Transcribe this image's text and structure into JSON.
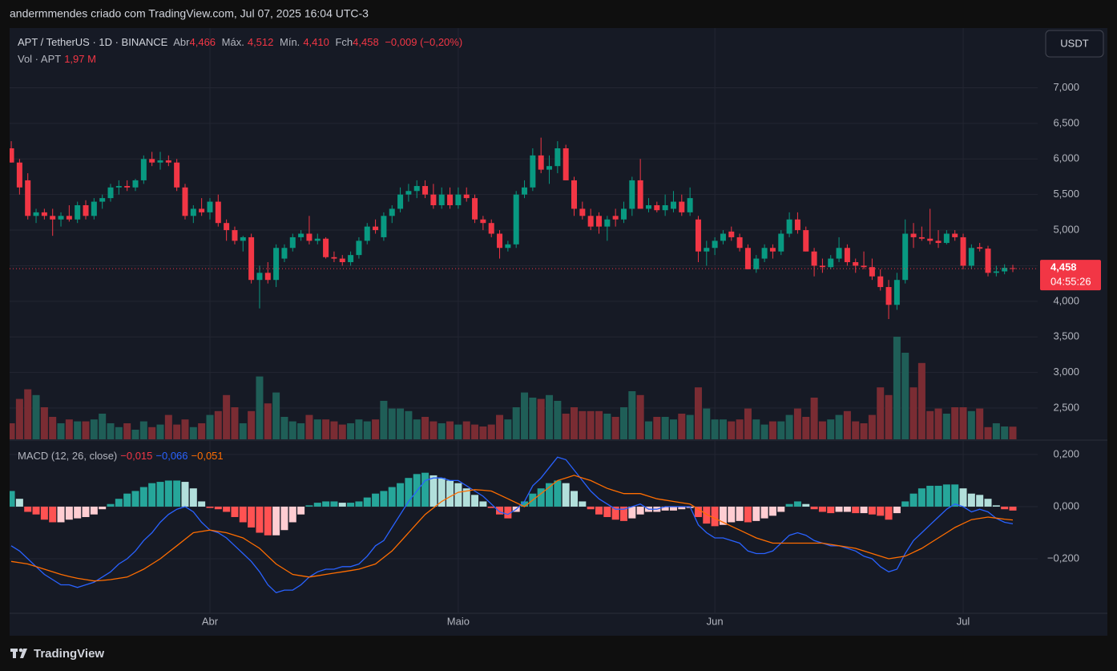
{
  "header": {
    "attribution": "andermmendes criado com TradingView.com, Jul 07, 2025 16:04 UTC-3",
    "symbol": "APT / TetherUS · 1D · BINANCE",
    "open_label": "Abr",
    "open": "4,466",
    "high_label": "Máx.",
    "high": "4,512",
    "low_label": "Mín.",
    "low": "4,410",
    "close_label": "Fch",
    "close": "4,458",
    "change": "−0,009 (−0,20%)",
    "volume_label": "Vol · APT",
    "volume": "1,97 M",
    "currency": "USDT",
    "price_tag": "4,458",
    "countdown": "04:55:26",
    "macd_label": "MACD (12, 26, close)",
    "macd_hist": "−0,015",
    "macd": "−0,066",
    "macd_signal": "−0,051",
    "logo": "TradingView"
  },
  "chart_data": {
    "type": "candlestick",
    "grid": true,
    "up_color": "#089981",
    "down_color": "#f23645",
    "volume_up_color": "#1f5e57",
    "volume_down_color": "#7a2c33",
    "xlim": [
      -1.36,
      124
    ],
    "xticks": [
      {
        "value": 24,
        "label": "Abr"
      },
      {
        "value": 54,
        "label": "Maio"
      },
      {
        "value": 85,
        "label": "Jun"
      },
      {
        "value": 115,
        "label": "Jul"
      }
    ],
    "ylim": [
      2.06,
      7.84
    ],
    "yticks": [
      {
        "value": 7,
        "label": "7,000"
      },
      {
        "value": 6.5,
        "label": "6,500"
      },
      {
        "value": 6,
        "label": "6,000"
      },
      {
        "value": 5.5,
        "label": "5,500"
      },
      {
        "value": 5,
        "label": "5,000"
      },
      {
        "value": 4.5,
        "label": "4,500"
      },
      {
        "value": 4,
        "label": "4,000"
      },
      {
        "value": 3.5,
        "label": "3,500"
      },
      {
        "value": 3,
        "label": "3,000"
      },
      {
        "value": 2.5,
        "label": "2,500"
      }
    ],
    "ohlc": [
      [
        6.15,
        6.25,
        5.95,
        5.95
      ],
      [
        5.95,
        6.0,
        5.5,
        5.6
      ],
      [
        5.7,
        5.8,
        5.15,
        5.2
      ],
      [
        5.2,
        5.3,
        5.1,
        5.25
      ],
      [
        5.25,
        5.3,
        5.15,
        5.2
      ],
      [
        5.2,
        5.3,
        4.92,
        5.15
      ],
      [
        5.15,
        5.25,
        5.05,
        5.2
      ],
      [
        5.2,
        5.35,
        5.12,
        5.15
      ],
      [
        5.15,
        5.4,
        5.1,
        5.35
      ],
      [
        5.35,
        5.42,
        5.15,
        5.2
      ],
      [
        5.2,
        5.45,
        5.15,
        5.4
      ],
      [
        5.4,
        5.5,
        5.3,
        5.45
      ],
      [
        5.45,
        5.65,
        5.4,
        5.6
      ],
      [
        5.6,
        5.7,
        5.5,
        5.62
      ],
      [
        5.62,
        5.7,
        5.55,
        5.6
      ],
      [
        5.6,
        5.72,
        5.55,
        5.7
      ],
      [
        5.7,
        6.05,
        5.65,
        6.0
      ],
      [
        6.0,
        6.1,
        5.9,
        5.95
      ],
      [
        5.95,
        6.1,
        5.85,
        5.98
      ],
      [
        5.98,
        6.05,
        5.9,
        5.95
      ],
      [
        5.95,
        6.0,
        5.55,
        5.6
      ],
      [
        5.6,
        5.65,
        5.15,
        5.2
      ],
      [
        5.2,
        5.35,
        5.1,
        5.3
      ],
      [
        5.3,
        5.45,
        5.2,
        5.25
      ],
      [
        5.25,
        5.45,
        5.15,
        5.4
      ],
      [
        5.4,
        5.5,
        5.05,
        5.1
      ],
      [
        5.1,
        5.15,
        4.85,
        5.0
      ],
      [
        5.0,
        5.05,
        4.8,
        4.85
      ],
      [
        4.85,
        4.92,
        4.7,
        4.9
      ],
      [
        4.9,
        4.95,
        4.25,
        4.3
      ],
      [
        4.3,
        4.5,
        3.9,
        4.4
      ],
      [
        4.4,
        4.55,
        4.25,
        4.3
      ],
      [
        4.3,
        4.8,
        4.2,
        4.75
      ],
      [
        4.6,
        4.8,
        4.55,
        4.75
      ],
      [
        4.75,
        4.95,
        4.7,
        4.9
      ],
      [
        4.9,
        5.0,
        4.85,
        4.95
      ],
      [
        4.95,
        5.2,
        4.8,
        4.85
      ],
      [
        4.85,
        4.95,
        4.8,
        4.88
      ],
      [
        4.88,
        4.9,
        4.6,
        4.62
      ],
      [
        4.62,
        4.7,
        4.55,
        4.6
      ],
      [
        4.6,
        4.65,
        4.5,
        4.55
      ],
      [
        4.55,
        4.7,
        4.5,
        4.65
      ],
      [
        4.65,
        4.9,
        4.6,
        4.85
      ],
      [
        4.85,
        5.1,
        4.8,
        5.05
      ],
      [
        5.05,
        5.15,
        4.95,
        5.0
      ],
      [
        4.9,
        5.25,
        4.85,
        5.2
      ],
      [
        5.2,
        5.35,
        5.1,
        5.3
      ],
      [
        5.3,
        5.6,
        5.25,
        5.5
      ],
      [
        5.5,
        5.65,
        5.4,
        5.55
      ],
      [
        5.55,
        5.7,
        5.45,
        5.62
      ],
      [
        5.62,
        5.7,
        5.45,
        5.5
      ],
      [
        5.5,
        5.65,
        5.3,
        5.35
      ],
      [
        5.35,
        5.6,
        5.3,
        5.5
      ],
      [
        5.5,
        5.6,
        5.3,
        5.35
      ],
      [
        5.35,
        5.6,
        5.3,
        5.5
      ],
      [
        5.5,
        5.6,
        5.4,
        5.45
      ],
      [
        5.45,
        5.5,
        5.1,
        5.15
      ],
      [
        5.15,
        5.2,
        5.0,
        5.1
      ],
      [
        5.1,
        5.15,
        4.9,
        4.95
      ],
      [
        4.95,
        5.0,
        4.6,
        4.75
      ],
      [
        4.75,
        4.85,
        4.7,
        4.8
      ],
      [
        4.8,
        5.55,
        4.75,
        5.5
      ],
      [
        5.5,
        5.7,
        5.45,
        5.6
      ],
      [
        5.6,
        6.15,
        5.55,
        6.05
      ],
      [
        6.05,
        6.3,
        5.8,
        5.85
      ],
      [
        5.85,
        6.05,
        5.65,
        5.9
      ],
      [
        5.9,
        6.25,
        5.8,
        6.15
      ],
      [
        6.15,
        6.2,
        5.7,
        5.7
      ],
      [
        5.7,
        5.75,
        5.2,
        5.3
      ],
      [
        5.3,
        5.4,
        5.15,
        5.2
      ],
      [
        5.2,
        5.3,
        5.0,
        5.05
      ],
      [
        5.2,
        5.25,
        4.95,
        5.05
      ],
      [
        5.05,
        5.2,
        4.85,
        5.15
      ],
      [
        5.2,
        5.3,
        5.05,
        5.15
      ],
      [
        5.15,
        5.4,
        5.1,
        5.3
      ],
      [
        5.3,
        5.75,
        5.2,
        5.7
      ],
      [
        5.7,
        6.0,
        5.3,
        5.3
      ],
      [
        5.3,
        5.45,
        5.25,
        5.35
      ],
      [
        5.35,
        5.4,
        5.25,
        5.28
      ],
      [
        5.28,
        5.5,
        5.2,
        5.35
      ],
      [
        5.3,
        5.55,
        5.25,
        5.4
      ],
      [
        5.4,
        5.5,
        5.2,
        5.25
      ],
      [
        5.25,
        5.6,
        5.2,
        5.45
      ],
      [
        5.15,
        5.2,
        4.55,
        4.7
      ],
      [
        4.7,
        4.85,
        4.5,
        4.75
      ],
      [
        4.75,
        4.9,
        4.65,
        4.85
      ],
      [
        4.85,
        5.0,
        4.8,
        4.95
      ],
      [
        4.98,
        5.05,
        4.85,
        4.9
      ],
      [
        4.9,
        4.95,
        4.7,
        4.75
      ],
      [
        4.75,
        4.8,
        4.45,
        4.45
      ],
      [
        4.45,
        4.65,
        4.4,
        4.6
      ],
      [
        4.6,
        4.8,
        4.55,
        4.75
      ],
      [
        4.75,
        4.8,
        4.6,
        4.7
      ],
      [
        4.7,
        5.0,
        4.65,
        4.95
      ],
      [
        4.95,
        5.25,
        4.9,
        5.15
      ],
      [
        5.15,
        5.25,
        4.95,
        5.0
      ],
      [
        5.0,
        5.05,
        4.7,
        4.7
      ],
      [
        4.7,
        4.75,
        4.35,
        4.5
      ],
      [
        4.5,
        4.6,
        4.4,
        4.48
      ],
      [
        4.48,
        4.65,
        4.45,
        4.6
      ],
      [
        4.6,
        4.9,
        4.55,
        4.75
      ],
      [
        4.75,
        4.8,
        4.5,
        4.55
      ],
      [
        4.55,
        4.6,
        4.4,
        4.5
      ],
      [
        4.5,
        4.7,
        4.45,
        4.48
      ],
      [
        4.48,
        4.6,
        4.3,
        4.35
      ],
      [
        4.35,
        4.45,
        4.15,
        4.2
      ],
      [
        4.2,
        4.3,
        3.75,
        3.95
      ],
      [
        3.95,
        4.4,
        3.88,
        4.3
      ],
      [
        4.3,
        5.15,
        4.25,
        4.95
      ],
      [
        4.95,
        5.1,
        4.75,
        4.9
      ],
      [
        4.9,
        5.05,
        4.85,
        4.88
      ],
      [
        4.88,
        5.3,
        4.8,
        4.85
      ],
      [
        4.85,
        5.0,
        4.75,
        4.82
      ],
      [
        4.82,
        5.0,
        4.8,
        4.95
      ],
      [
        4.95,
        5.0,
        4.85,
        4.9
      ],
      [
        4.9,
        4.95,
        4.45,
        4.5
      ],
      [
        4.5,
        4.8,
        4.45,
        4.75
      ],
      [
        4.76,
        4.82,
        4.7,
        4.74
      ],
      [
        4.74,
        4.78,
        4.35,
        4.4
      ],
      [
        4.4,
        4.5,
        4.35,
        4.42
      ],
      [
        4.42,
        4.52,
        4.38,
        4.47
      ],
      [
        4.466,
        4.512,
        4.41,
        4.458
      ]
    ],
    "volume": [
      2.5,
      6.3,
      7.8,
      6.9,
      5.0,
      3.5,
      2.5,
      3.1,
      2.8,
      2.8,
      3.1,
      4.0,
      2.5,
      1.9,
      2.5,
      1.5,
      2.8,
      1.9,
      2.3,
      3.8,
      2.3,
      3.1,
      1.9,
      2.5,
      3.8,
      4.4,
      6.9,
      5.0,
      2.5,
      4.4,
      9.8,
      5.6,
      7.3,
      3.5,
      2.8,
      2.5,
      3.8,
      3.1,
      3.1,
      2.8,
      2.3,
      2.5,
      3.1,
      2.8,
      3.1,
      6.0,
      4.8,
      4.8,
      4.4,
      3.1,
      3.5,
      2.8,
      2.5,
      2.8,
      2.3,
      2.8,
      2.3,
      2.0,
      2.3,
      3.8,
      3.1,
      5.0,
      7.3,
      6.5,
      6.3,
      6.9,
      6.0,
      4.0,
      5.0,
      4.4,
      4.4,
      4.4,
      4.0,
      3.5,
      5.0,
      7.5,
      6.9,
      2.8,
      3.5,
      3.5,
      3.1,
      4.0,
      3.8,
      8.1,
      4.8,
      3.1,
      3.1,
      2.8,
      3.1,
      4.8,
      3.1,
      2.3,
      2.8,
      2.8,
      3.8,
      4.8,
      3.5,
      6.5,
      2.8,
      3.1,
      3.8,
      4.4,
      2.8,
      2.5,
      3.8,
      8.1,
      6.9,
      16.0,
      13.5,
      8.1,
      11.9,
      4.4,
      4.8,
      4.0,
      5.0,
      5.0,
      4.4,
      4.8,
      1.9,
      2.5,
      2.0,
      1.97
    ],
    "macd": {
      "ylim": [
        -0.409,
        0.252
      ],
      "yticks": [
        {
          "value": 0.2,
          "label": "0,200"
        },
        {
          "value": 0,
          "label": "0,000"
        },
        {
          "value": -0.2,
          "label": "−0,200"
        }
      ],
      "macd_color": "#2962ff",
      "signal_color": "#ff6d00",
      "hist_up_strong": "#26a69a",
      "hist_up_weak": "#b2dfdb",
      "hist_down_strong": "#ff5252",
      "hist_down_weak": "#ffcdd2",
      "histogram": [
        0.06,
        0.03,
        -0.02,
        -0.03,
        -0.05,
        -0.06,
        -0.06,
        -0.05,
        -0.045,
        -0.04,
        -0.03,
        -0.01,
        0.01,
        0.03,
        0.05,
        0.06,
        0.075,
        0.09,
        0.095,
        0.1,
        0.1,
        0.095,
        0.07,
        0.02,
        -0.005,
        -0.01,
        -0.02,
        -0.04,
        -0.06,
        -0.08,
        -0.1,
        -0.11,
        -0.11,
        -0.09,
        -0.06,
        -0.03,
        0.005,
        0.015,
        0.02,
        0.02,
        0.015,
        0.015,
        0.02,
        0.035,
        0.05,
        0.06,
        0.075,
        0.09,
        0.11,
        0.125,
        0.13,
        0.12,
        0.11,
        0.1,
        0.09,
        0.07,
        0.045,
        0.02,
        -0.005,
        -0.03,
        -0.045,
        -0.02,
        0.02,
        0.05,
        0.07,
        0.09,
        0.1,
        0.09,
        0.06,
        0.02,
        -0.01,
        -0.03,
        -0.04,
        -0.05,
        -0.055,
        -0.045,
        -0.03,
        -0.02,
        -0.02,
        -0.015,
        -0.015,
        -0.01,
        -0.005,
        -0.04,
        -0.065,
        -0.075,
        -0.07,
        -0.06,
        -0.055,
        -0.06,
        -0.055,
        -0.045,
        -0.035,
        -0.02,
        0.01,
        0.02,
        0.01,
        -0.01,
        -0.02,
        -0.025,
        -0.02,
        -0.02,
        -0.025,
        -0.025,
        -0.03,
        -0.035,
        -0.05,
        -0.025,
        0.02,
        0.05,
        0.07,
        0.08,
        0.08,
        0.085,
        0.085,
        0.07,
        0.05,
        0.045,
        0.03,
        0.005,
        -0.01,
        -0.015
      ],
      "macd": [
        -0.15,
        -0.17,
        -0.2,
        -0.23,
        -0.26,
        -0.28,
        -0.3,
        -0.3,
        -0.31,
        -0.3,
        -0.29,
        -0.27,
        -0.25,
        -0.22,
        -0.2,
        -0.17,
        -0.13,
        -0.1,
        -0.06,
        -0.03,
        -0.01,
        0,
        -0.02,
        -0.06,
        -0.09,
        -0.1,
        -0.12,
        -0.15,
        -0.18,
        -0.21,
        -0.25,
        -0.3,
        -0.33,
        -0.32,
        -0.32,
        -0.3,
        -0.27,
        -0.25,
        -0.24,
        -0.24,
        -0.23,
        -0.23,
        -0.22,
        -0.19,
        -0.15,
        -0.13,
        -0.08,
        -0.03,
        0.02,
        0.06,
        0.1,
        0.11,
        0.11,
        0.1,
        0.1,
        0.08,
        0.06,
        0.04,
        0.01,
        -0.02,
        -0.03,
        -0.01,
        0.02,
        0.08,
        0.11,
        0.15,
        0.19,
        0.18,
        0.14,
        0.1,
        0.06,
        0.03,
        0.01,
        -0.01,
        -0.01,
        0,
        0.01,
        -0.01,
        -0.01,
        0,
        0,
        0,
        0,
        -0.07,
        -0.1,
        -0.12,
        -0.12,
        -0.13,
        -0.14,
        -0.17,
        -0.18,
        -0.18,
        -0.17,
        -0.14,
        -0.11,
        -0.1,
        -0.11,
        -0.13,
        -0.14,
        -0.15,
        -0.15,
        -0.16,
        -0.17,
        -0.19,
        -0.2,
        -0.23,
        -0.25,
        -0.24,
        -0.18,
        -0.13,
        -0.1,
        -0.07,
        -0.04,
        -0.01,
        0.01,
        0,
        -0.02,
        -0.01,
        -0.02,
        -0.045,
        -0.06,
        -0.066
      ],
      "signal": [
        -0.21,
        -0.215,
        -0.22,
        -0.23,
        -0.24,
        -0.25,
        -0.26,
        -0.268,
        -0.275,
        -0.28,
        -0.285,
        -0.283,
        -0.28,
        -0.275,
        -0.27,
        -0.255,
        -0.24,
        -0.22,
        -0.2,
        -0.175,
        -0.15,
        -0.125,
        -0.1,
        -0.095,
        -0.09,
        -0.095,
        -0.1,
        -0.11,
        -0.12,
        -0.14,
        -0.16,
        -0.19,
        -0.22,
        -0.24,
        -0.26,
        -0.265,
        -0.27,
        -0.265,
        -0.26,
        -0.255,
        -0.25,
        -0.245,
        -0.24,
        -0.23,
        -0.22,
        -0.195,
        -0.17,
        -0.135,
        -0.1,
        -0.065,
        -0.03,
        -0.005,
        0.02,
        0.038,
        0.055,
        0.06,
        0.065,
        0.063,
        0.06,
        0.045,
        0.03,
        0.015,
        0,
        0.025,
        0.05,
        0.075,
        0.1,
        0.11,
        0.12,
        0.11,
        0.1,
        0.085,
        0.07,
        0.06,
        0.05,
        0.05,
        0.05,
        0.04,
        0.03,
        0.025,
        0.02,
        0.015,
        0.01,
        -0.01,
        -0.03,
        -0.045,
        -0.06,
        -0.075,
        -0.09,
        -0.105,
        -0.12,
        -0.13,
        -0.14,
        -0.14,
        -0.14,
        -0.14,
        -0.14,
        -0.14,
        -0.14,
        -0.145,
        -0.15,
        -0.155,
        -0.16,
        -0.17,
        -0.18,
        -0.19,
        -0.2,
        -0.195,
        -0.19,
        -0.175,
        -0.16,
        -0.14,
        -0.12,
        -0.1,
        -0.08,
        -0.065,
        -0.05,
        -0.045,
        -0.04,
        -0.044,
        -0.048,
        -0.051
      ]
    }
  }
}
